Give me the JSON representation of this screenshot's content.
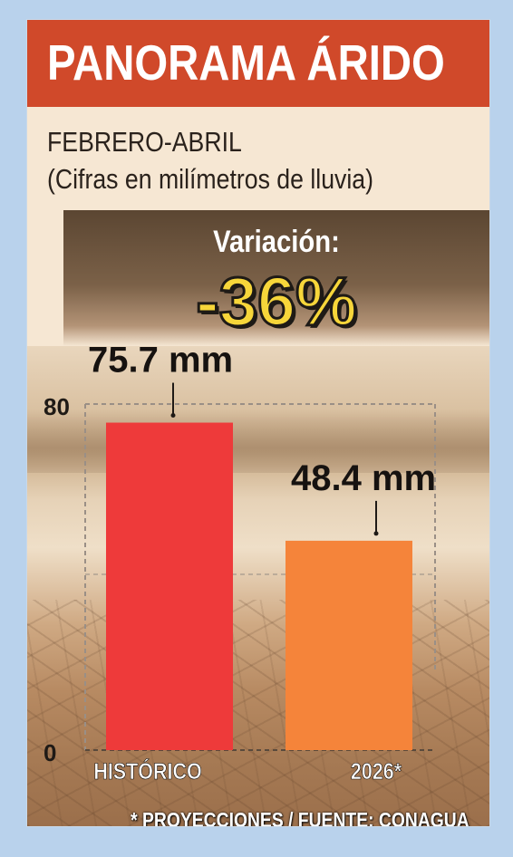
{
  "header": {
    "title": "PANORAMA ÁRIDO"
  },
  "subtitle": {
    "line1": "FEBRERO-ABRIL",
    "line2": "(Cifras en milímetros de lluvia)"
  },
  "variation": {
    "label": "Variación:",
    "value": "-36%"
  },
  "footnote": "* PROYECCIONES / FUENTE: CONAGUA",
  "colors": {
    "header": "#d0492a",
    "bar_historico": "#ee3a3a",
    "bar_2026": "#f5843a",
    "highlight": "#f7d63a"
  },
  "chart_data": {
    "type": "bar",
    "title": "",
    "categories": [
      "HISTÓRICO",
      "2026*"
    ],
    "values": [
      75.7,
      48.4
    ],
    "data_labels": [
      "75.7 mm",
      "48.4 mm"
    ],
    "unit": "mm",
    "ylim": [
      0,
      80
    ],
    "y_ticks": [
      "0",
      "80"
    ],
    "grid": true
  }
}
